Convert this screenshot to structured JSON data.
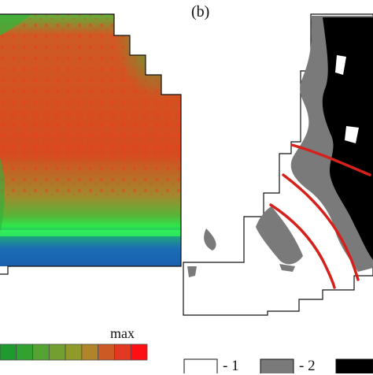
{
  "panel_b": {
    "label": "(b)"
  },
  "color_scale": {
    "max_label": "max",
    "colors": [
      "#1f9a2e",
      "#31a232",
      "#55a332",
      "#72a030",
      "#8f9a2a",
      "#b0842a",
      "#cc5a24",
      "#e23a22",
      "#ff0f14"
    ]
  },
  "class_legend": {
    "items": [
      {
        "label": "- 1",
        "color": "#ffffff"
      },
      {
        "label": "- 2",
        "color": "#7a7a7a"
      },
      {
        "label": "",
        "color": "#000000"
      }
    ]
  },
  "colors": {
    "heatmap_high": "#d9491f",
    "heatmap_mid": "#2fb236",
    "heatmap_low": "#1b6db4",
    "fault_line": "#d5211c"
  }
}
